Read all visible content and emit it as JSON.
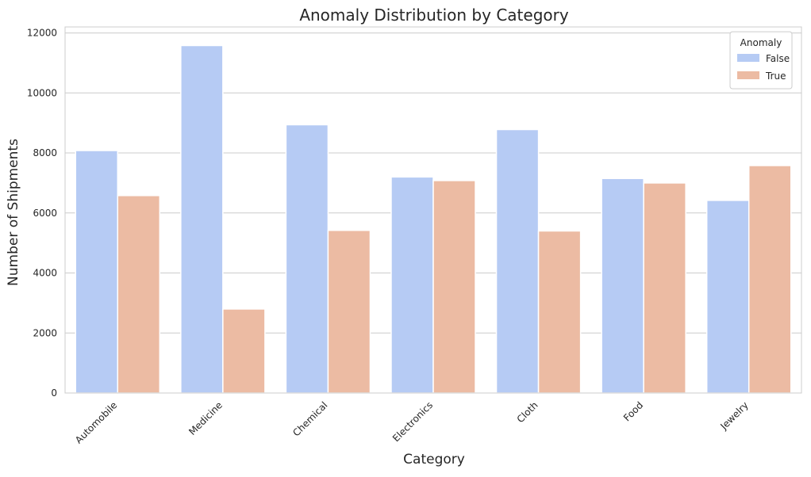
{
  "chart_data": {
    "type": "bar",
    "title": "Anomaly Distribution by Category",
    "xlabel": "Category",
    "ylabel": "Number of Shipments",
    "categories": [
      "Automobile",
      "Medicine",
      "Chemical",
      "Electronics",
      "Cloth",
      "Food",
      "Jewelry"
    ],
    "series": [
      {
        "name": "False",
        "color": "#b6cbf4",
        "values": [
          8080,
          11580,
          8940,
          7200,
          8780,
          7150,
          6420
        ]
      },
      {
        "name": "True",
        "color": "#ecbba3",
        "values": [
          6580,
          2800,
          5420,
          7080,
          5400,
          7000,
          7580
        ]
      }
    ],
    "ylim": [
      0,
      12200
    ],
    "yticks": [
      0,
      2000,
      4000,
      6000,
      8000,
      10000,
      12000
    ],
    "grid": "y",
    "legend": {
      "title": "Anomaly",
      "placement": "top-right"
    }
  }
}
